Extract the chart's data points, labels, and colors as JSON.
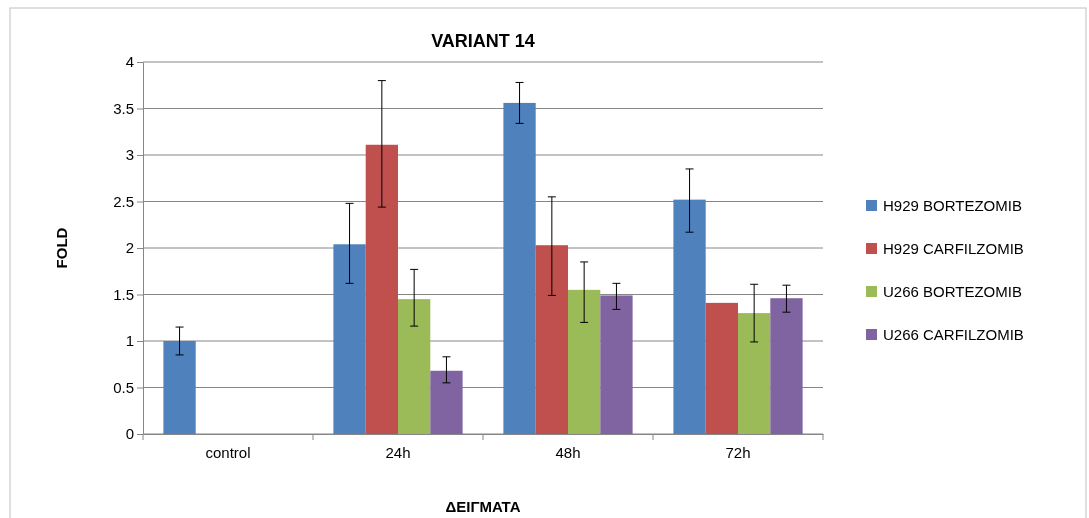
{
  "chart_data": {
    "type": "bar",
    "title": "VARIANT 14",
    "xlabel": "ΔΕΙΓΜΑΤΑ",
    "ylabel": "FOLD",
    "categories": [
      "control",
      "24h",
      "48h",
      "72h"
    ],
    "ylim": [
      0,
      4
    ],
    "yticks": [
      0,
      0.5,
      1,
      1.5,
      2,
      2.5,
      3,
      3.5,
      4
    ],
    "grid": "y",
    "legend": "right",
    "series": [
      {
        "name": "H929 BORTEZOMIB",
        "color": "#4f81bd",
        "values": [
          1.0,
          2.04,
          3.56,
          2.52
        ],
        "errors": [
          [
            0.85,
            1.15
          ],
          [
            1.62,
            2.48
          ],
          [
            3.34,
            3.78
          ],
          [
            2.17,
            2.85
          ]
        ]
      },
      {
        "name": "H929 CARFILZOMIB",
        "color": "#c0504d",
        "values": [
          null,
          3.11,
          2.03,
          1.41
        ],
        "errors": [
          null,
          [
            2.44,
            3.8
          ],
          [
            1.49,
            2.55
          ],
          null
        ]
      },
      {
        "name": "U266 BORTEZOMIB",
        "color": "#9bbb59",
        "values": [
          null,
          1.45,
          1.55,
          1.3
        ],
        "errors": [
          null,
          [
            1.16,
            1.77
          ],
          [
            1.2,
            1.85
          ],
          [
            0.99,
            1.61
          ]
        ]
      },
      {
        "name": "U266 CARFILZOMIB",
        "color": "#8064a2",
        "values": [
          null,
          0.68,
          1.49,
          1.46
        ],
        "errors": [
          null,
          [
            0.55,
            0.83
          ],
          [
            1.34,
            1.62
          ],
          [
            1.31,
            1.6
          ]
        ]
      }
    ]
  }
}
